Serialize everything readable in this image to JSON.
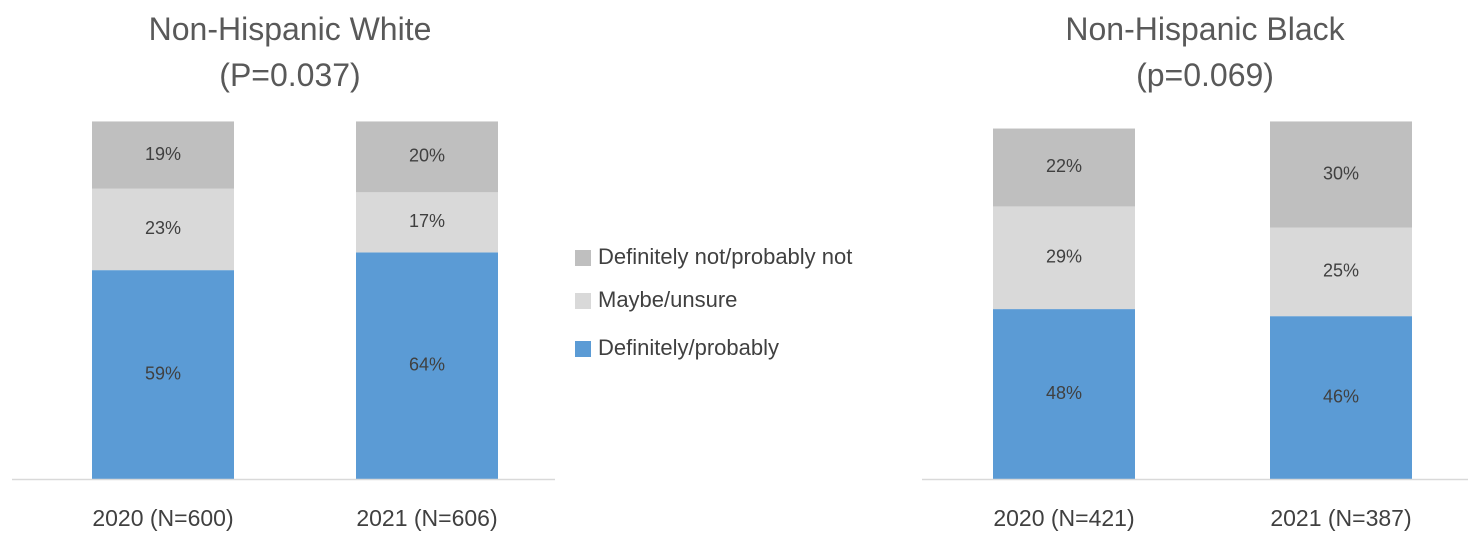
{
  "chart_data": [
    {
      "type": "bar",
      "stacked": true,
      "title": [
        "Non-Hispanic White",
        "(P=0.037)"
      ],
      "categories": [
        "2020 (N=600)",
        "2021 (N=606)"
      ],
      "series": [
        {
          "name": "Definitely/probably",
          "values": [
            59,
            64
          ],
          "labels": [
            "59%",
            "64%"
          ],
          "color": "#5b9bd5"
        },
        {
          "name": "Maybe/unsure",
          "values": [
            23,
            17
          ],
          "labels": [
            "23%",
            "17%"
          ],
          "color": "#d9d9d9"
        },
        {
          "name": "Definitely not/probably not",
          "values": [
            19,
            20
          ],
          "labels": [
            "19%",
            "20%"
          ],
          "color": "#bfbfbf"
        }
      ],
      "ylim": [
        0,
        100
      ],
      "grid": false
    },
    {
      "type": "bar",
      "stacked": true,
      "title": [
        "Non-Hispanic Black",
        "(p=0.069)"
      ],
      "categories": [
        "2020 (N=421)",
        "2021 (N=387)"
      ],
      "series": [
        {
          "name": "Definitely/probably",
          "values": [
            48,
            46
          ],
          "labels": [
            "48%",
            "46%"
          ],
          "color": "#5b9bd5"
        },
        {
          "name": "Maybe/unsure",
          "values": [
            29,
            25
          ],
          "labels": [
            "29%",
            "25%"
          ],
          "color": "#d9d9d9"
        },
        {
          "name": "Definitely not/probably not",
          "values": [
            22,
            30
          ],
          "labels": [
            "22%",
            "30%"
          ],
          "color": "#bfbfbf"
        }
      ],
      "ylim": [
        0,
        100
      ],
      "grid": false
    }
  ],
  "legend": {
    "placement": "center",
    "items": [
      {
        "label": "Definitely not/probably not",
        "color": "#bfbfbf"
      },
      {
        "label": "Maybe/unsure",
        "color": "#d9d9d9"
      },
      {
        "label": "Definitely/probably",
        "color": "#5b9bd5"
      }
    ]
  }
}
